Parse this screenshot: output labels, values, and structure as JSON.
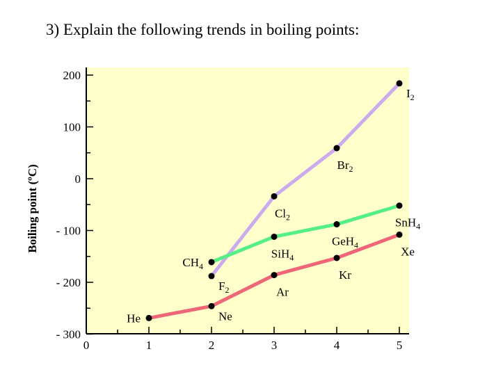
{
  "question": "3)   Explain the following trends in boiling points:",
  "chart_data": {
    "type": "line",
    "title": "",
    "ylabel": "Boiling point (ºC)",
    "xlabel": "",
    "xlim": [
      0,
      5.2
    ],
    "ylim": [
      -300,
      205
    ],
    "x_ticks": [
      {
        "value": 0,
        "label": "0"
      },
      {
        "value": 1,
        "label": "1"
      },
      {
        "value": 2,
        "label": "2"
      },
      {
        "value": 3,
        "label": "3"
      },
      {
        "value": 4,
        "label": "4"
      },
      {
        "value": 5,
        "label": "5"
      }
    ],
    "y_ticks": [
      {
        "value": 200,
        "label": "200"
      },
      {
        "value": 100,
        "label": "100"
      },
      {
        "value": 0,
        "label": "0"
      },
      {
        "value": -100,
        "label": "- 100"
      },
      {
        "value": -200,
        "label": "- 200"
      },
      {
        "value": -300,
        "label": "- 300"
      }
    ],
    "plot_background": "#FFFFCC",
    "series": [
      {
        "color": "#CCAAEE",
        "points": [
          {
            "x": 2,
            "y": -188,
            "label": "F",
            "sub": "2",
            "pos": "below-right"
          },
          {
            "x": 3,
            "y": -34,
            "label": "Cl",
            "sub": "2",
            "pos": "below"
          },
          {
            "x": 4,
            "y": 59,
            "label": "Br",
            "sub": "2",
            "pos": "below"
          },
          {
            "x": 5,
            "y": 184,
            "label": "I",
            "sub": "2",
            "pos": "below-right"
          }
        ]
      },
      {
        "color": "#55EE88",
        "points": [
          {
            "x": 2,
            "y": -161,
            "label": "CH",
            "sub": "4",
            "pos": "left"
          },
          {
            "x": 3,
            "y": -112,
            "label": "SiH",
            "sub": "4",
            "pos": "below"
          },
          {
            "x": 4,
            "y": -88,
            "label": "GeH",
            "sub": "4",
            "pos": "below"
          },
          {
            "x": 5,
            "y": -52,
            "label": "SnH",
            "sub": "4",
            "pos": "below"
          }
        ]
      },
      {
        "color": "#EE6677",
        "points": [
          {
            "x": 1,
            "y": -269,
            "label": "He",
            "sub": "",
            "pos": "left"
          },
          {
            "x": 2,
            "y": -246,
            "label": "Ne",
            "sub": "",
            "pos": "below-right"
          },
          {
            "x": 3,
            "y": -186,
            "label": "Ar",
            "sub": "",
            "pos": "below"
          },
          {
            "x": 4,
            "y": -153,
            "label": "Kr",
            "sub": "",
            "pos": "below"
          },
          {
            "x": 5,
            "y": -108,
            "label": "Xe",
            "sub": "",
            "pos": "below"
          }
        ]
      }
    ]
  }
}
